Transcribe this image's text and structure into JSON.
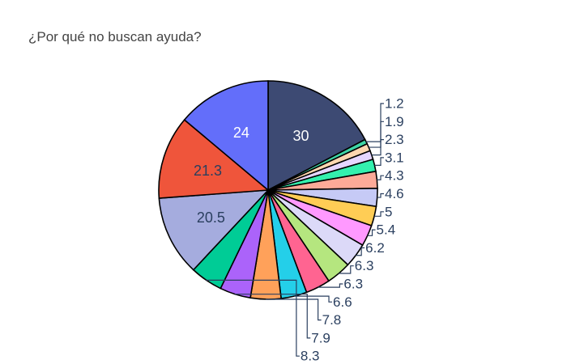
{
  "chart_data": {
    "type": "pie",
    "title": "¿Por qué no buscan ayuda?",
    "direction": "clockwise",
    "start": "12 o'clock",
    "slices": [
      {
        "label": "30",
        "value": 30,
        "color": "#3d4a73"
      },
      {
        "label": "1.2",
        "value": 1.2,
        "color": "#3fd5a6"
      },
      {
        "label": "1.9",
        "value": 1.9,
        "color": "#fdd7b0"
      },
      {
        "label": "2.3",
        "value": 2.3,
        "color": "#e6d6ff"
      },
      {
        "label": "3.1",
        "value": 3.1,
        "color": "#34f0ae"
      },
      {
        "label": "4.3",
        "value": 4.3,
        "color": "#fdaa98"
      },
      {
        "label": "4.6",
        "value": 4.6,
        "color": "#c6caf6"
      },
      {
        "label": "5",
        "value": 5,
        "color": "#ffcd55"
      },
      {
        "label": "5.4",
        "value": 5.4,
        "color": "#ff99ff"
      },
      {
        "label": "6.2",
        "value": 6.2,
        "color": "#dcd9f8"
      },
      {
        "label": "6.3",
        "value": 6.3,
        "color": "#b5e67f"
      },
      {
        "label": "6.3",
        "value": 6.3,
        "color": "#ff6491"
      },
      {
        "label": "6.6",
        "value": 6.6,
        "color": "#24cfe9"
      },
      {
        "label": "7.8",
        "value": 7.8,
        "color": "#ffa15a"
      },
      {
        "label": "7.9",
        "value": 7.9,
        "color": "#ab63fa"
      },
      {
        "label": "8.3",
        "value": 8.3,
        "color": "#00cc96"
      },
      {
        "label": "20.5",
        "value": 20.5,
        "color": "#a5acde"
      },
      {
        "label": "21.3",
        "value": 21.3,
        "color": "#ef553b"
      },
      {
        "label": "24",
        "value": 24,
        "color": "#636efa"
      }
    ]
  }
}
